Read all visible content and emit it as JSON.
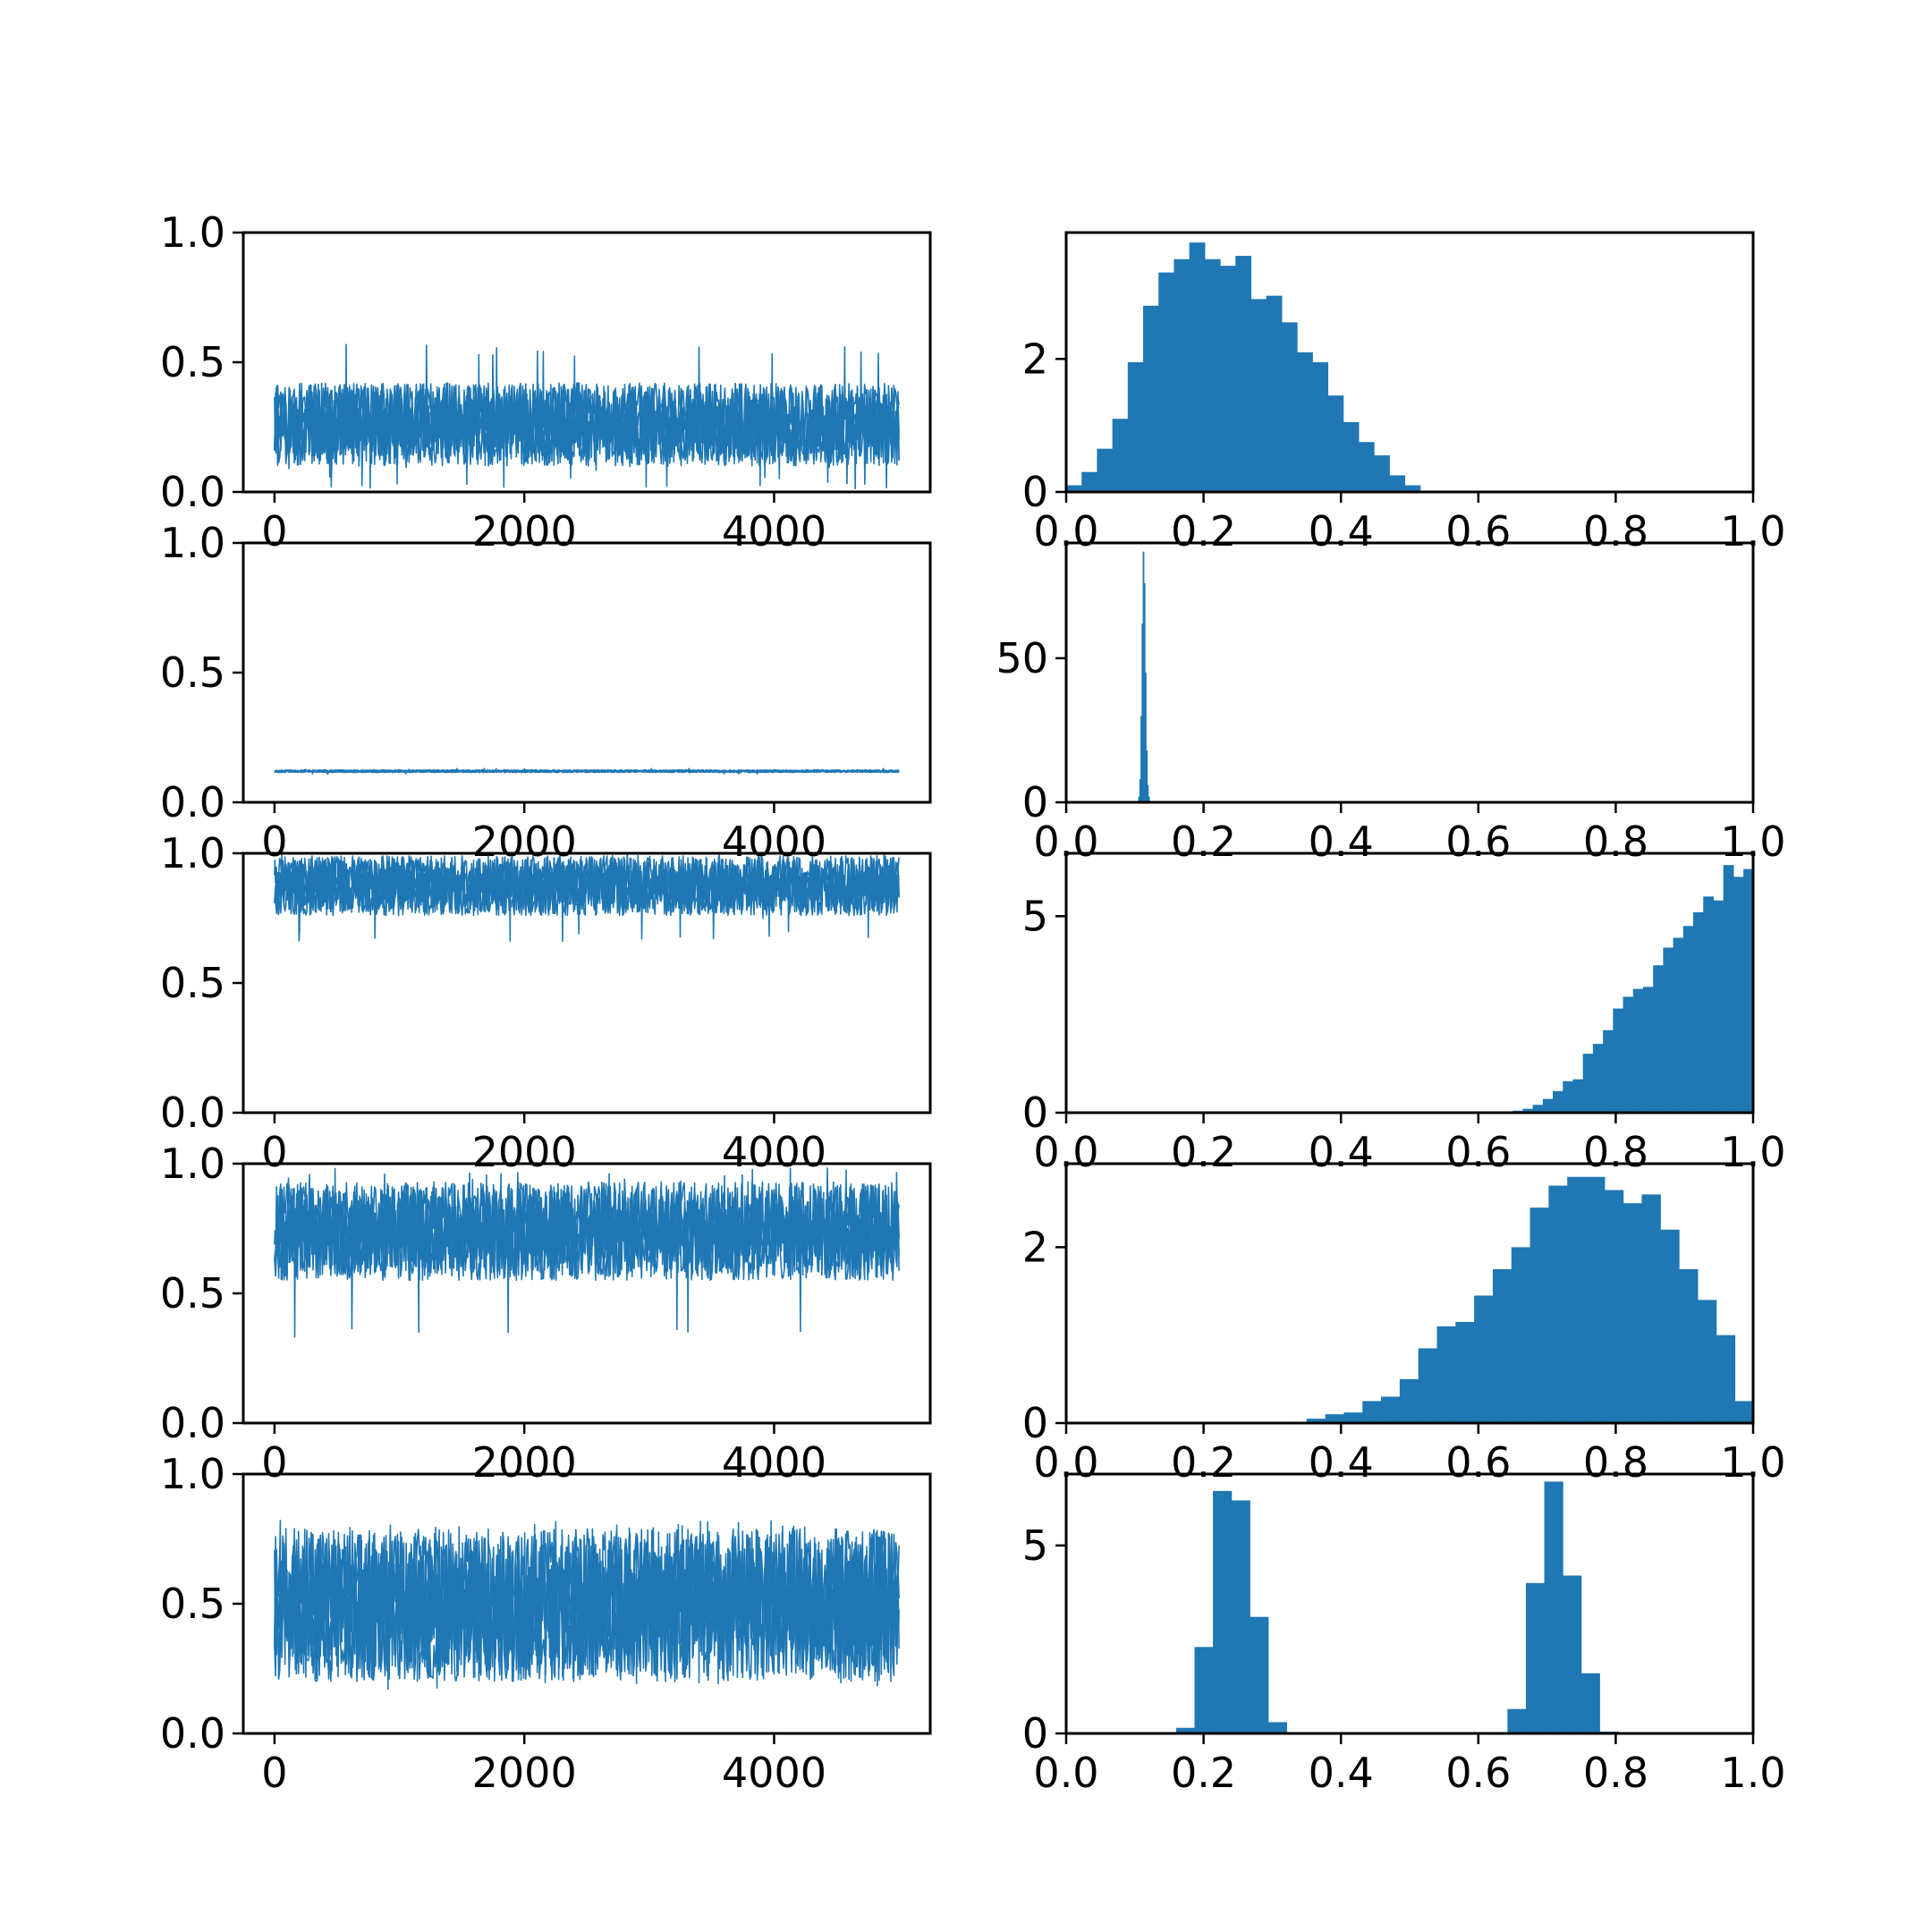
{
  "figure": {
    "background": "#ffffff",
    "series_color": "#1f77b4"
  },
  "chart_data": [
    {
      "type": "line",
      "row": 1,
      "panel": "trace",
      "xlim": [
        -250,
        5250
      ],
      "ylim": [
        0,
        1
      ],
      "xticks": [
        0,
        2000,
        4000
      ],
      "xtick_labels": [
        "0",
        "2000",
        "4000"
      ],
      "yticks": [
        0,
        0.5,
        1
      ],
      "ytick_labels": [
        "0.0",
        "0.5",
        "1.0"
      ],
      "n_samples": 5000,
      "center": [
        [
          0,
          0.25
        ],
        [
          5000,
          0.25
        ]
      ],
      "band": {
        "lower": 0.1,
        "upper": 0.42
      },
      "extremes": {
        "min": 0.01,
        "max": 0.57
      }
    },
    {
      "type": "bar",
      "row": 1,
      "panel": "histogram",
      "xlim": [
        0,
        1
      ],
      "ylim": [
        0,
        3.9
      ],
      "xticks": [
        0,
        0.2,
        0.4,
        0.6,
        0.8,
        1
      ],
      "xtick_labels": [
        "0.0",
        "0.2",
        "0.4",
        "0.6",
        "0.8",
        "1.0"
      ],
      "yticks": [
        0,
        2
      ],
      "ytick_labels": [
        "0",
        "2"
      ],
      "bin_edges_start": 0.0,
      "bin_width": 0.0224,
      "values": [
        0.1,
        0.3,
        0.65,
        1.1,
        1.95,
        2.8,
        3.3,
        3.5,
        3.75,
        3.5,
        3.4,
        3.55,
        2.9,
        2.95,
        2.55,
        2.1,
        1.95,
        1.45,
        1.05,
        0.75,
        0.55,
        0.25,
        0.1
      ]
    },
    {
      "type": "line",
      "row": 2,
      "panel": "trace",
      "xlim": [
        -250,
        5250
      ],
      "ylim": [
        0,
        1
      ],
      "xticks": [
        0,
        2000,
        4000
      ],
      "xtick_labels": [
        "0",
        "2000",
        "4000"
      ],
      "yticks": [
        0,
        0.5,
        1
      ],
      "ytick_labels": [
        "0.0",
        "0.5",
        "1.0"
      ],
      "n_samples": 5000,
      "center": [
        [
          0,
          0.12
        ],
        [
          5000,
          0.12
        ]
      ],
      "band": {
        "lower": 0.115,
        "upper": 0.125
      },
      "extremes": {
        "min": 0.11,
        "max": 0.13
      }
    },
    {
      "type": "bar",
      "row": 2,
      "panel": "histogram",
      "xlim": [
        0,
        1
      ],
      "ylim": [
        0,
        90
      ],
      "xticks": [
        0,
        0.2,
        0.4,
        0.6,
        0.8,
        1
      ],
      "xtick_labels": [
        "0.0",
        "0.2",
        "0.4",
        "0.6",
        "0.8",
        "1.0"
      ],
      "yticks": [
        0,
        50
      ],
      "ytick_labels": [
        "0",
        "50"
      ],
      "bin_edges_start": 0.105,
      "bin_width": 0.0016,
      "values": [
        2,
        8,
        30,
        62,
        87,
        76,
        45,
        18,
        6,
        2
      ]
    },
    {
      "type": "line",
      "row": 3,
      "panel": "trace",
      "xlim": [
        -250,
        5250
      ],
      "ylim": [
        0,
        1
      ],
      "xticks": [
        0,
        2000,
        4000
      ],
      "xtick_labels": [
        "0",
        "2000",
        "4000"
      ],
      "yticks": [
        0,
        0.5,
        1
      ],
      "ytick_labels": [
        "0.0",
        "0.5",
        "1.0"
      ],
      "n_samples": 5000,
      "center": [
        [
          0,
          0.88
        ],
        [
          5000,
          0.88
        ]
      ],
      "band": {
        "lower": 0.76,
        "upper": 0.99
      },
      "extremes": {
        "min": 0.66,
        "max": 1.0
      }
    },
    {
      "type": "bar",
      "row": 3,
      "panel": "histogram",
      "xlim": [
        0,
        1
      ],
      "ylim": [
        0,
        6.6
      ],
      "xticks": [
        0,
        0.2,
        0.4,
        0.6,
        0.8,
        1
      ],
      "xtick_labels": [
        "0.0",
        "0.2",
        "0.4",
        "0.6",
        "0.8",
        "1.0"
      ],
      "yticks": [
        0,
        5
      ],
      "ytick_labels": [
        "0",
        "5"
      ],
      "bin_edges_start": 0.65,
      "bin_width": 0.0146,
      "values": [
        0.05,
        0.1,
        0.2,
        0.35,
        0.55,
        0.8,
        0.85,
        1.5,
        1.75,
        2.1,
        2.65,
        2.95,
        3.15,
        3.2,
        3.75,
        4.2,
        4.45,
        4.75,
        5.1,
        5.5,
        5.4,
        6.3,
        6.0,
        6.2
      ]
    },
    {
      "type": "line",
      "row": 4,
      "panel": "trace",
      "xlim": [
        -250,
        5250
      ],
      "ylim": [
        0,
        1
      ],
      "xticks": [
        0,
        2000,
        4000
      ],
      "xtick_labels": [
        "0",
        "2000",
        "4000"
      ],
      "yticks": [
        0,
        0.5,
        1
      ],
      "ytick_labels": [
        "0.0",
        "0.5",
        "1.0"
      ],
      "n_samples": 5000,
      "center": [
        [
          0,
          0.74
        ],
        [
          5000,
          0.74
        ]
      ],
      "band": {
        "lower": 0.55,
        "upper": 0.93
      },
      "extremes": {
        "min": 0.32,
        "max": 0.99
      }
    },
    {
      "type": "bar",
      "row": 4,
      "panel": "histogram",
      "xlim": [
        0,
        1
      ],
      "ylim": [
        0,
        2.95
      ],
      "xticks": [
        0,
        0.2,
        0.4,
        0.6,
        0.8,
        1
      ],
      "xtick_labels": [
        "0.0",
        "0.2",
        "0.4",
        "0.6",
        "0.8",
        "1.0"
      ],
      "yticks": [
        0,
        2
      ],
      "ytick_labels": [
        "0",
        "2"
      ],
      "bin_edges_start": 0.35,
      "bin_width": 0.0271,
      "values": [
        0.05,
        0.1,
        0.12,
        0.25,
        0.3,
        0.5,
        0.85,
        1.1,
        1.15,
        1.45,
        1.75,
        2.0,
        2.45,
        2.7,
        2.8,
        2.8,
        2.65,
        2.5,
        2.6,
        2.2,
        1.75,
        1.4,
        1.0,
        0.25
      ]
    },
    {
      "type": "line",
      "row": 5,
      "panel": "trace",
      "xlim": [
        -250,
        5250
      ],
      "ylim": [
        0,
        1
      ],
      "xticks": [
        0,
        2000,
        4000
      ],
      "xtick_labels": [
        "0",
        "2000",
        "4000"
      ],
      "yticks": [
        0,
        0.5,
        1
      ],
      "ytick_labels": [
        "0.0",
        "0.5",
        "1.0"
      ],
      "n_samples": 5000,
      "center": [
        [
          0,
          0.5
        ],
        [
          5000,
          0.5
        ]
      ],
      "band": {
        "lower": 0.2,
        "upper": 0.79
      },
      "extremes": {
        "min": 0.17,
        "max": 0.83
      }
    },
    {
      "type": "bar",
      "row": 5,
      "panel": "histogram",
      "xlim": [
        0,
        1
      ],
      "ylim": [
        0,
        6.9
      ],
      "xticks": [
        0,
        0.2,
        0.4,
        0.6,
        0.8,
        1
      ],
      "xtick_labels": [
        "0.0",
        "0.2",
        "0.4",
        "0.6",
        "0.8",
        "1.0"
      ],
      "yticks": [
        0,
        5
      ],
      "ytick_labels": [
        "0",
        "5"
      ],
      "bin_edges_start": 0.16,
      "bin_width": 0.0268,
      "values": [
        0.15,
        2.3,
        6.45,
        6.2,
        3.1,
        0.3,
        0,
        0,
        0,
        0,
        0,
        0,
        0,
        0,
        0,
        0,
        0,
        0,
        0.65,
        4.0,
        6.7,
        4.2,
        1.6,
        0.05
      ]
    }
  ]
}
